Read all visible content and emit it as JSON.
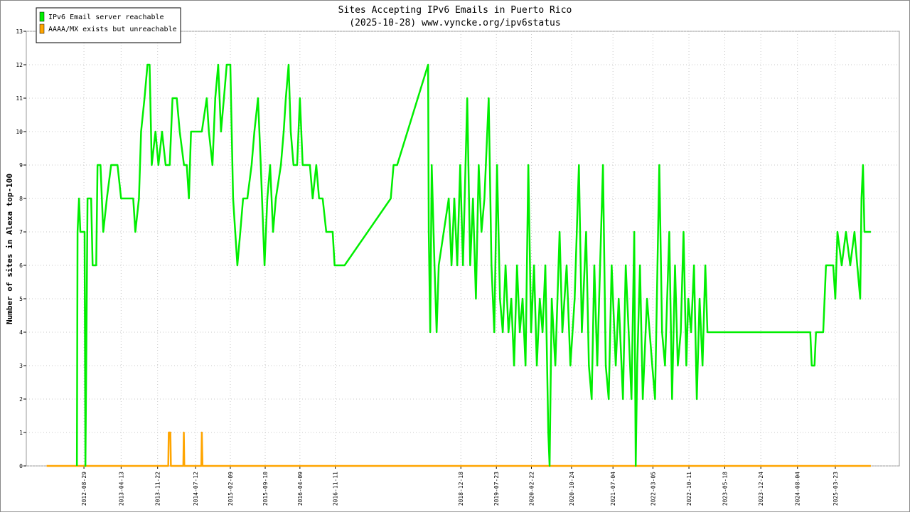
{
  "chart_data": {
    "type": "line",
    "title": "Sites Accepting IPv6 Emails in Puerto Rico",
    "subtitle": "(2025-10-28) www.vyncke.org/ipv6status",
    "y_label": "Number of sites in Alexa top-100",
    "xlim": [
      "2011-09-12",
      "2026-04-18"
    ],
    "xticks": [
      "2012-08-29",
      "2013-04-13",
      "2013-11-22",
      "2014-07-12",
      "2015-02-09",
      "2015-09-10",
      "2016-04-09",
      "2016-11-11",
      "2018-12-18",
      "2019-07-23",
      "2020-02-22",
      "2020-10-24",
      "2021-07-04",
      "2022-03-05",
      "2022-10-11",
      "2023-05-18",
      "2023-12-24",
      "2024-08-04",
      "2025-03-23"
    ],
    "ylim": [
      0,
      13
    ],
    "yticks": [
      0,
      1,
      2,
      3,
      4,
      5,
      6,
      7,
      8,
      9,
      10,
      11,
      12,
      13
    ],
    "grid": true,
    "legend": "upper-left",
    "series": [
      {
        "name": "IPv6 Email server reachable",
        "color": "#00ee00",
        "x": [
          "2012-07-17",
          "2012-07-21",
          "2012-07-30",
          "2012-08-07",
          "2012-09-02",
          "2012-09-07",
          "2012-09-20",
          "2012-10-12",
          "2012-10-21",
          "2012-11-12",
          "2012-11-20",
          "2012-12-08",
          "2012-12-25",
          "2013-01-16",
          "2013-02-11",
          "2013-03-22",
          "2013-04-13",
          "2013-06-26",
          "2013-07-09",
          "2013-07-31",
          "2013-08-13",
          "2013-09-03",
          "2013-09-21",
          "2013-10-04",
          "2013-10-17",
          "2013-11-09",
          "2013-11-27",
          "2013-12-19",
          "2014-01-10",
          "2014-02-04",
          "2014-02-21",
          "2014-03-19",
          "2014-04-06",
          "2014-05-02",
          "2014-05-19",
          "2014-06-01",
          "2014-06-14",
          "2014-08-19",
          "2014-09-18",
          "2014-10-01",
          "2014-10-23",
          "2014-11-09",
          "2014-11-27",
          "2014-12-14",
          "2015-01-01",
          "2015-01-18",
          "2015-02-09",
          "2015-02-26",
          "2015-03-11",
          "2015-03-24",
          "2015-04-11",
          "2015-04-28",
          "2015-05-24",
          "2015-06-19",
          "2015-07-06",
          "2015-07-28",
          "2015-08-14",
          "2015-09-06",
          "2015-09-23",
          "2015-10-10",
          "2015-10-28",
          "2015-11-14",
          "2015-12-15",
          "2016-01-01",
          "2016-01-14",
          "2016-01-31",
          "2016-02-13",
          "2016-03-01",
          "2016-03-23",
          "2016-04-09",
          "2016-04-26",
          "2016-06-09",
          "2016-06-26",
          "2016-07-18",
          "2016-08-04",
          "2016-08-26",
          "2016-09-17",
          "2016-10-26",
          "2016-11-07",
          "2017-01-07",
          "2017-10-16",
          "2017-11-02",
          "2017-11-24",
          "2018-06-01",
          "2018-06-05",
          "2018-06-14",
          "2018-06-23",
          "2018-07-10",
          "2018-07-23",
          "2018-08-05",
          "2018-10-05",
          "2018-10-22",
          "2018-11-08",
          "2018-11-26",
          "2018-12-14",
          "2018-12-31",
          "2019-01-26",
          "2019-02-13",
          "2019-03-02",
          "2019-03-20",
          "2019-04-06",
          "2019-04-23",
          "2019-05-11",
          "2019-06-06",
          "2019-06-23",
          "2019-07-10",
          "2019-07-27",
          "2019-08-14",
          "2019-08-31",
          "2019-09-17",
          "2019-10-05",
          "2019-10-22",
          "2019-11-08",
          "2019-11-26",
          "2019-12-13",
          "2019-12-30",
          "2020-01-17",
          "2020-02-03",
          "2020-02-20",
          "2020-03-09",
          "2020-03-26",
          "2020-04-13",
          "2020-04-30",
          "2020-05-17",
          "2020-06-04",
          "2020-06-12",
          "2020-06-25",
          "2020-07-17",
          "2020-08-12",
          "2020-08-29",
          "2020-09-24",
          "2020-10-17",
          "2020-11-12",
          "2020-12-08",
          "2020-12-26",
          "2021-01-21",
          "2021-02-07",
          "2021-02-24",
          "2021-03-12",
          "2021-03-30",
          "2021-05-04",
          "2021-05-21",
          "2021-06-08",
          "2021-06-26",
          "2021-07-21",
          "2021-08-08",
          "2021-09-03",
          "2021-09-20",
          "2021-10-08",
          "2021-10-25",
          "2021-11-11",
          "2021-11-20",
          "2021-11-29",
          "2021-12-16",
          "2022-01-02",
          "2022-01-28",
          "2022-03-01",
          "2022-03-18",
          "2022-04-13",
          "2022-04-30",
          "2022-05-18",
          "2022-06-13",
          "2022-06-30",
          "2022-07-18",
          "2022-08-04",
          "2022-08-22",
          "2022-09-08",
          "2022-09-25",
          "2022-10-07",
          "2022-10-24",
          "2022-11-11",
          "2022-11-28",
          "2022-12-15",
          "2023-01-02",
          "2023-01-19",
          "2023-02-01",
          "2024-10-21",
          "2024-10-30",
          "2024-11-16",
          "2024-11-25",
          "2025-01-08",
          "2025-01-25",
          "2025-03-10",
          "2025-03-23",
          "2025-04-05",
          "2025-05-01",
          "2025-05-27",
          "2025-06-22",
          "2025-07-18",
          "2025-08-04",
          "2025-08-22",
          "2025-08-30",
          "2025-09-08",
          "2025-09-17",
          "2025-10-26"
        ],
        "values": [
          0,
          7,
          8,
          7,
          7,
          0,
          8,
          8,
          6,
          6,
          9,
          9,
          7,
          8,
          9,
          9,
          8,
          8,
          7,
          8,
          10,
          11,
          12,
          12,
          9,
          10,
          9,
          10,
          9,
          9,
          11,
          11,
          10,
          9,
          9,
          8,
          10,
          10,
          11,
          10,
          9,
          11,
          12,
          10,
          11,
          12,
          12,
          8,
          7,
          6,
          7,
          8,
          8,
          9,
          10,
          11,
          9,
          6,
          8,
          9,
          7,
          8,
          9,
          10,
          11,
          12,
          10,
          9,
          9,
          11,
          9,
          9,
          8,
          9,
          8,
          8,
          7,
          7,
          6,
          6,
          8,
          9,
          9,
          12,
          7,
          4,
          9,
          6,
          4,
          6,
          8,
          6,
          8,
          6,
          9,
          6,
          11,
          6,
          8,
          5,
          9,
          7,
          8,
          11,
          6,
          4,
          9,
          5,
          4,
          6,
          4,
          5,
          3,
          6,
          4,
          5,
          3,
          9,
          4,
          6,
          3,
          5,
          4,
          6,
          1,
          0,
          5,
          3,
          7,
          4,
          6,
          3,
          5,
          9,
          4,
          7,
          3,
          2,
          6,
          3,
          9,
          3,
          2,
          6,
          3,
          5,
          2,
          6,
          4,
          2,
          7,
          0,
          3,
          6,
          2,
          5,
          3,
          2,
          9,
          4,
          3,
          7,
          2,
          6,
          3,
          4,
          7,
          3,
          5,
          4,
          6,
          2,
          5,
          3,
          6,
          4,
          4,
          3,
          3,
          4,
          4,
          6,
          6,
          5,
          7,
          6,
          7,
          6,
          7,
          6,
          5,
          8,
          9,
          7,
          7
        ]
      },
      {
        "name": "AAAA/MX exists but unreachable",
        "color": "#ffa500",
        "x": [
          "2012-01-14",
          "2014-01-26",
          "2014-01-29",
          "2014-02-08",
          "2014-02-11",
          "2014-04-28",
          "2014-05-01",
          "2014-05-04",
          "2014-08-16",
          "2014-08-19",
          "2014-08-23",
          "2025-10-26"
        ],
        "values": [
          0,
          0,
          1,
          1,
          0,
          0,
          1,
          0,
          0,
          1,
          0,
          0
        ]
      }
    ]
  }
}
